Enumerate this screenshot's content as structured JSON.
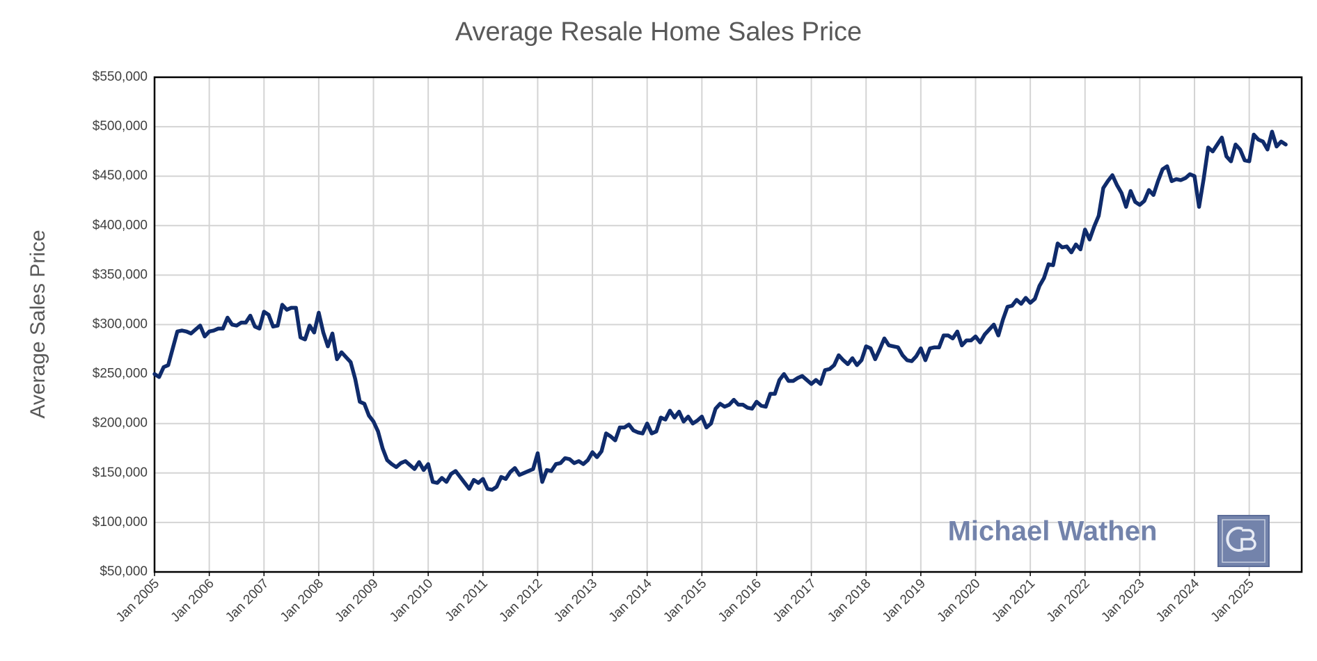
{
  "chart_data": {
    "type": "line",
    "title": "Average Resale Home Sales Price",
    "y_label": "Average Sales Price",
    "watermark": "Michael Wathen",
    "color": "#0f2b6b",
    "grid": true,
    "categories": [
      "Jan 2005",
      null,
      null,
      null,
      null,
      null,
      null,
      null,
      null,
      null,
      null,
      null,
      "Jan 2006",
      null,
      null,
      null,
      null,
      null,
      null,
      null,
      null,
      null,
      null,
      null,
      "Jan 2007",
      null,
      null,
      null,
      null,
      null,
      null,
      null,
      null,
      null,
      null,
      null,
      "Jan 2008",
      null,
      null,
      null,
      null,
      null,
      null,
      null,
      null,
      null,
      null,
      null,
      "Jan 2009",
      null,
      null,
      null,
      null,
      null,
      null,
      null,
      null,
      null,
      null,
      null,
      "Jan 2010",
      null,
      null,
      null,
      null,
      null,
      null,
      null,
      null,
      null,
      null,
      null,
      "Jan 2011",
      null,
      null,
      null,
      null,
      null,
      null,
      null,
      null,
      null,
      null,
      null,
      "Jan 2012",
      null,
      null,
      null,
      null,
      null,
      null,
      null,
      null,
      null,
      null,
      null,
      "Jan 2013",
      null,
      null,
      null,
      null,
      null,
      null,
      null,
      null,
      null,
      null,
      null,
      "Jan 2014",
      null,
      null,
      null,
      null,
      null,
      null,
      null,
      null,
      null,
      null,
      null,
      "Jan 2015",
      null,
      null,
      null,
      null,
      null,
      null,
      null,
      null,
      null,
      null,
      null,
      "Jan 2016",
      null,
      null,
      null,
      null,
      null,
      null,
      null,
      null,
      null,
      null,
      null,
      "Jan 2017",
      null,
      null,
      null,
      null,
      null,
      null,
      null,
      null,
      null,
      null,
      null,
      "Jan 2018",
      null,
      null,
      null,
      null,
      null,
      null,
      null,
      null,
      null,
      null,
      null,
      "Jan 2019",
      null,
      null,
      null,
      null,
      null,
      null,
      null,
      null,
      null,
      null,
      null,
      "Jan 2020",
      null,
      null,
      null,
      null,
      null,
      null,
      null,
      null,
      null,
      null,
      null,
      "Jan 2021",
      null,
      null,
      null,
      null,
      null,
      null,
      null,
      null,
      null,
      null,
      null,
      "Jan 2022",
      null,
      null,
      null,
      null,
      null,
      null,
      null,
      null,
      null,
      null,
      null,
      "Jan 2023",
      null,
      null,
      null,
      null,
      null,
      null,
      null,
      null,
      null,
      null,
      null,
      "Jan 2024",
      null,
      null,
      null,
      null,
      null,
      null,
      null,
      null,
      null,
      null,
      null,
      "Jan 2025",
      null,
      null,
      null,
      null,
      null,
      null,
      null,
      null
    ],
    "values": [
      250000,
      247000,
      257000,
      259000,
      276000,
      293000,
      294000,
      293000,
      291000,
      295000,
      299000,
      288000,
      293000,
      294000,
      296000,
      296000,
      307000,
      300000,
      299000,
      302000,
      302000,
      309000,
      298000,
      296000,
      313000,
      310000,
      298000,
      299000,
      320000,
      315000,
      317000,
      317000,
      287000,
      285000,
      299000,
      292000,
      312000,
      292000,
      278000,
      291000,
      265000,
      272000,
      267000,
      262000,
      245000,
      222000,
      220000,
      208000,
      202000,
      192000,
      175000,
      163000,
      159000,
      156000,
      160000,
      162000,
      158000,
      154000,
      161000,
      153000,
      159000,
      141000,
      140000,
      145000,
      141000,
      149000,
      152000,
      146000,
      140000,
      134000,
      143000,
      140000,
      144000,
      134000,
      133000,
      136000,
      146000,
      144000,
      151000,
      155000,
      148000,
      150000,
      152000,
      154000,
      170000,
      141000,
      153000,
      152000,
      159000,
      160000,
      165000,
      164000,
      160000,
      162000,
      159000,
      163000,
      171000,
      166000,
      172000,
      190000,
      187000,
      183000,
      196000,
      196000,
      199000,
      193000,
      191000,
      190000,
      200000,
      190000,
      192000,
      206000,
      204000,
      213000,
      206000,
      212000,
      202000,
      207000,
      200000,
      203000,
      207000,
      196000,
      200000,
      215000,
      220000,
      217000,
      219000,
      224000,
      219000,
      219000,
      216000,
      215000,
      222000,
      218000,
      217000,
      230000,
      230000,
      244000,
      250000,
      243000,
      243000,
      246000,
      248000,
      244000,
      240000,
      244000,
      240000,
      254000,
      255000,
      259000,
      269000,
      264000,
      260000,
      266000,
      259000,
      264000,
      278000,
      276000,
      265000,
      275000,
      286000,
      279000,
      278000,
      277000,
      269000,
      264000,
      263000,
      268000,
      276000,
      264000,
      276000,
      277000,
      277000,
      289000,
      289000,
      286000,
      293000,
      279000,
      284000,
      284000,
      288000,
      282000,
      290000,
      295000,
      300000,
      289000,
      305000,
      318000,
      319000,
      325000,
      321000,
      327000,
      322000,
      326000,
      339000,
      347000,
      361000,
      360000,
      382000,
      378000,
      379000,
      373000,
      381000,
      376000,
      396000,
      386000,
      399000,
      410000,
      438000,
      445000,
      451000,
      441000,
      433000,
      419000,
      435000,
      424000,
      421000,
      425000,
      436000,
      431000,
      445000,
      457000,
      460000,
      445000,
      447000,
      446000,
      448000,
      452000,
      450000,
      419000,
      447000,
      479000,
      475000,
      482000,
      489000,
      470000,
      465000,
      482000,
      477000,
      466000,
      465000,
      492000,
      487000,
      485000,
      477000,
      495000,
      480000,
      485000,
      482000
    ],
    "ylim": [
      50000,
      550000
    ],
    "yticks": [
      {
        "value": 50000,
        "label": "$50,000"
      },
      {
        "value": 100000,
        "label": "$100,000"
      },
      {
        "value": 150000,
        "label": "$150,000"
      },
      {
        "value": 200000,
        "label": "$200,000"
      },
      {
        "value": 250000,
        "label": "$250,000"
      },
      {
        "value": 300000,
        "label": "$300,000"
      },
      {
        "value": 350000,
        "label": "$350,000"
      },
      {
        "value": 400000,
        "label": "$400,000"
      },
      {
        "value": 450000,
        "label": "$450,000"
      },
      {
        "value": 500000,
        "label": "$500,000"
      },
      {
        "value": 550000,
        "label": "$550,000"
      }
    ]
  }
}
